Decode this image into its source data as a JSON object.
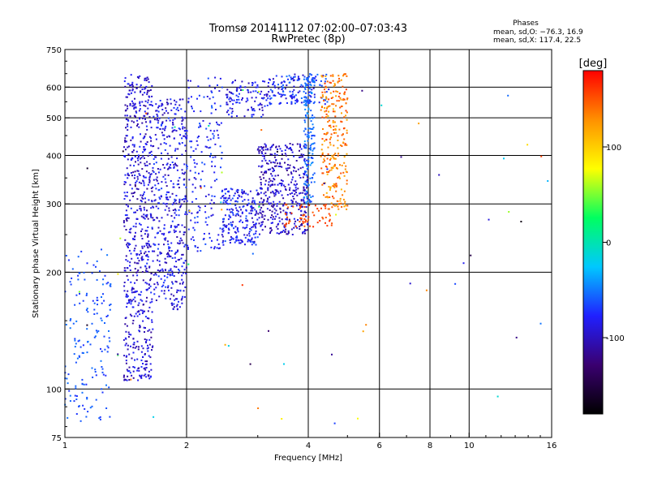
{
  "header": {
    "title_line1": "Tromsø 20141112 07:02:00–07:03:43",
    "title_line2": "RwPretec (8p)"
  },
  "phases_box": {
    "heading": "Phases",
    "line1": "mean, sd,O: −76.3, 16.9",
    "line2": "mean, sd,X: 117.4, 22.5"
  },
  "chart_data": {
    "type": "scatter",
    "title": "Tromsø 20141112 07:02:00–07:03:43",
    "subtitle": "RwPretec (8p)",
    "xlabel": "Frequency [MHz]",
    "ylabel": "Stationary phase Virtual Height [km]",
    "xscale": "log",
    "yscale": "log",
    "xlim": [
      1,
      16
    ],
    "ylim": [
      75,
      750
    ],
    "x_ticks": [
      1,
      2,
      4,
      6,
      8,
      10,
      16
    ],
    "x_tick_labels": [
      "1",
      "2",
      "4",
      "6",
      "8",
      "10",
      "16"
    ],
    "x_gridlines": [
      2,
      4,
      6,
      8,
      10
    ],
    "y_ticks": [
      75,
      100,
      200,
      300,
      400,
      500,
      600,
      750
    ],
    "y_tick_labels": [
      "75",
      "100",
      "200",
      "300",
      "400",
      "500",
      "600",
      "750"
    ],
    "y_gridlines": [
      100,
      200,
      300,
      400,
      500,
      600
    ],
    "grid": true,
    "colorbar": {
      "label": "[deg]",
      "min": -180,
      "max": 180,
      "tick_values": [
        100,
        0,
        -100
      ],
      "tick_labels": [
        "100",
        "0",
        "-100"
      ],
      "colormap": [
        "#000000",
        "#3a0070",
        "#2020ff",
        "#00c8ff",
        "#00ff60",
        "#ffff00",
        "#ff9000",
        "#ff0000"
      ]
    },
    "point_color": "by phase [deg]",
    "point_groups": [
      {
        "f": [
          1.0,
          1.3
        ],
        "h": [
          82,
          230
        ],
        "n": 160,
        "phase": [
          -75,
          -50
        ]
      },
      {
        "f": [
          1.4,
          1.65
        ],
        "h": [
          105,
          650
        ],
        "n": 650,
        "phase": [
          -115,
          -70
        ]
      },
      {
        "f": [
          1.65,
          2.0
        ],
        "h": [
          160,
          560
        ],
        "n": 450,
        "phase": [
          -110,
          -65
        ]
      },
      {
        "f": [
          2.0,
          2.45
        ],
        "h": [
          225,
          640
        ],
        "n": 180,
        "phase": [
          -95,
          -60
        ]
      },
      {
        "f": [
          2.45,
          3.0
        ],
        "h": [
          235,
          330
        ],
        "n": 220,
        "phase": [
          -105,
          -60
        ]
      },
      {
        "f": [
          2.5,
          3.2
        ],
        "h": [
          500,
          630
        ],
        "n": 110,
        "phase": [
          -105,
          -65
        ]
      },
      {
        "f": [
          3.0,
          4.0
        ],
        "h": [
          250,
          430
        ],
        "n": 420,
        "phase": [
          -120,
          -75
        ]
      },
      {
        "f": [
          3.2,
          4.5
        ],
        "h": [
          540,
          650
        ],
        "n": 150,
        "phase": [
          -100,
          -50
        ]
      },
      {
        "f": [
          3.9,
          4.15
        ],
        "h": [
          300,
          650
        ],
        "n": 160,
        "phase": [
          -70,
          -40
        ]
      },
      {
        "f": [
          4.3,
          5.0
        ],
        "h": [
          290,
          650
        ],
        "n": 260,
        "phase": [
          110,
          160
        ]
      },
      {
        "f": [
          3.5,
          4.6
        ],
        "h": [
          262,
          300
        ],
        "n": 60,
        "phase": [
          145,
          165
        ]
      },
      {
        "f": [
          1.0,
          16.0
        ],
        "h": [
          80,
          600
        ],
        "n": 70,
        "phase": [
          -170,
          170
        ]
      }
    ]
  }
}
